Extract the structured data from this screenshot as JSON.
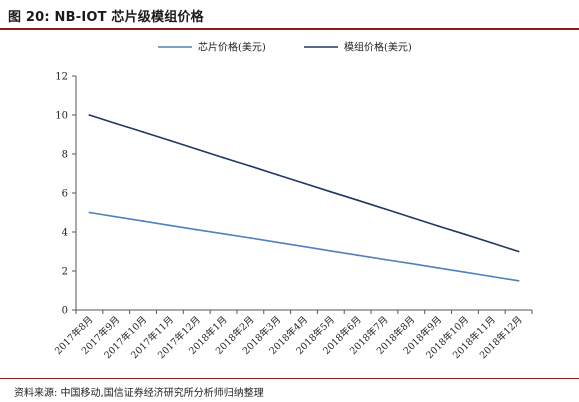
{
  "figure": {
    "title": "图 20:  NB-IOT 芯片级模组价格",
    "source": "资料来源:  中国移动,国信证券经济研究所分析师归纳整理"
  },
  "chart_data": {
    "type": "line",
    "categories": [
      "2017年8月",
      "2017年9月",
      "2017年10月",
      "2017年11月",
      "2017年12月",
      "2018年1月",
      "2018年2月",
      "2018年3月",
      "2018年4月",
      "2018年5月",
      "2018年6月",
      "2018年7月",
      "2018年8月",
      "2018年9月",
      "2018年10月",
      "2018年11月",
      "2018年12月"
    ],
    "series": [
      {
        "name": "芯片价格(美元)",
        "color": "#4f81bd",
        "values": [
          5,
          4.78,
          4.56,
          4.34,
          4.12,
          3.91,
          3.69,
          3.47,
          3.25,
          3.03,
          2.81,
          2.59,
          2.38,
          2.16,
          1.94,
          1.72,
          1.5
        ]
      },
      {
        "name": "模组价格(美元)",
        "color": "#1f3864",
        "values": [
          10,
          9.56,
          9.13,
          8.69,
          8.25,
          7.81,
          7.38,
          6.94,
          6.5,
          6.06,
          5.63,
          5.19,
          4.75,
          4.31,
          3.88,
          3.44,
          3
        ]
      }
    ],
    "ylim": [
      0,
      12
    ],
    "yticks": [
      0,
      2,
      4,
      6,
      8,
      10,
      12
    ],
    "xlabel": "",
    "ylabel": "",
    "legend_position": "top",
    "grid": false
  }
}
